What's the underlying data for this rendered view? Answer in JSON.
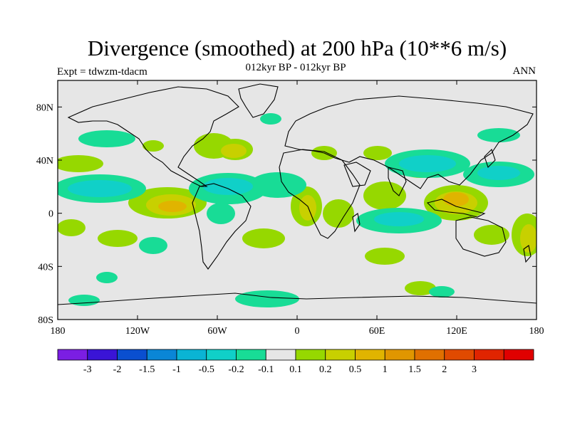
{
  "header": {
    "title": "Divergence (smoothed) at 200 hPa (10**6 m/s)",
    "center_subtitle": "012kyr BP - 012kyr BP",
    "left_subtitle": "Expt = tdwzm-tdacm",
    "right_subtitle": "ANN"
  },
  "map": {
    "x_ticks": [
      "180",
      "120W",
      "60W",
      "0",
      "60E",
      "120E",
      "180"
    ],
    "y_ticks": [
      "80N",
      "40N",
      "0",
      "40S",
      "80S"
    ],
    "background_color": "#e6e6e6"
  },
  "colorbar": {
    "colors": [
      "#7b1ee3",
      "#3a14d6",
      "#0a4fd0",
      "#0a86d6",
      "#0ab4d4",
      "#10d0c8",
      "#18dc96",
      "#e6e6e6",
      "#96d800",
      "#c8d000",
      "#e0b400",
      "#e09600",
      "#e07000",
      "#e04a00",
      "#e02400",
      "#e00000"
    ],
    "labels": [
      "-3",
      "-2",
      "-1.5",
      "-1",
      "-0.5",
      "-0.2",
      "-0.1",
      "0.1",
      "0.2",
      "0.5",
      "1",
      "1.5",
      "2",
      "3"
    ]
  }
}
